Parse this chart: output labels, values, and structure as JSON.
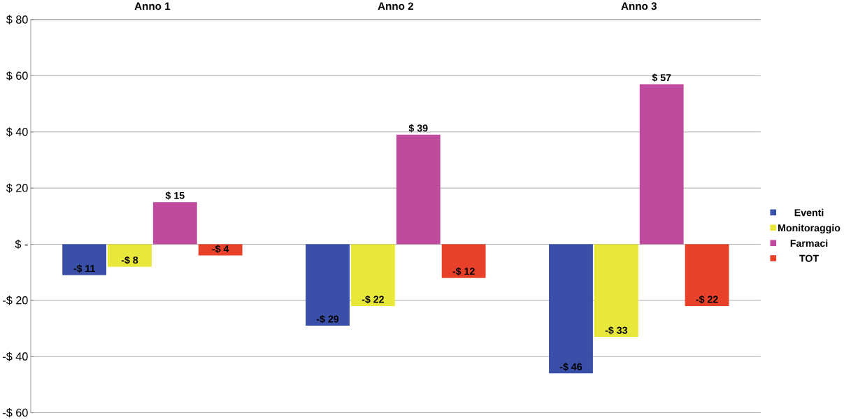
{
  "chart_data": {
    "type": "bar",
    "categories": [
      "Anno 1",
      "Anno 2",
      "Anno 3"
    ],
    "series": [
      {
        "name": "Eventi",
        "color": "#3a4fa8",
        "values": [
          -11,
          -29,
          -46
        ],
        "value_labels": [
          "-$ 11",
          "-$ 29",
          "-$ 46"
        ]
      },
      {
        "name": "Monitoraggio",
        "color": "#e8e83a",
        "values": [
          -8,
          -22,
          -33
        ],
        "value_labels": [
          "-$ 8",
          "-$ 22",
          "-$ 33"
        ]
      },
      {
        "name": "Farmaci",
        "color": "#bf4a9e",
        "values": [
          15,
          39,
          57
        ],
        "value_labels": [
          "$ 15",
          "$ 39",
          "$ 57"
        ]
      },
      {
        "name": "TOT",
        "color": "#e8412a",
        "values": [
          -4,
          -12,
          -22
        ],
        "value_labels": [
          "-$ 4",
          "-$ 12",
          "-$ 22"
        ]
      }
    ],
    "ylim": [
      -60,
      80
    ],
    "yticks": [
      {
        "value": -60,
        "label": "-$ 60"
      },
      {
        "value": -40,
        "label": "-$ 40"
      },
      {
        "value": -20,
        "label": "-$ 20"
      },
      {
        "value": 0,
        "label": "$ -"
      },
      {
        "value": 20,
        "label": "$ 20"
      },
      {
        "value": 40,
        "label": "$ 40"
      },
      {
        "value": 60,
        "label": "$ 60"
      },
      {
        "value": 80,
        "label": "$ 80"
      }
    ],
    "grid": "y",
    "legend": "right"
  }
}
